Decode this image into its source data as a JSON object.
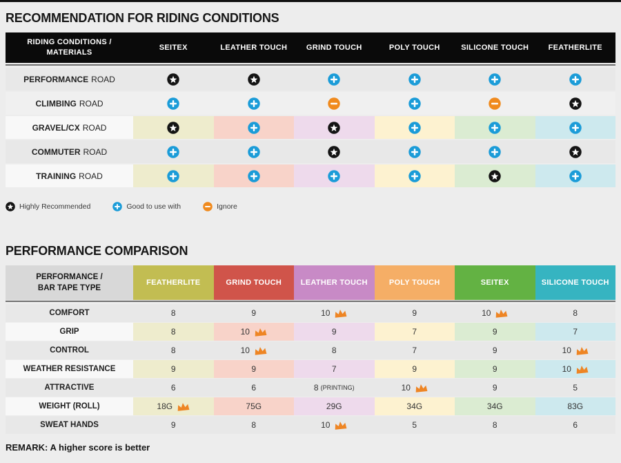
{
  "colors": {
    "page_bg": "#ededed",
    "top_strip": "#111111",
    "table1_header_bg": "#0a0a0a",
    "row_dark": "#e8e8e8",
    "row_mid": "#f0f0f0",
    "row_light": "#f8f8f8",
    "star": "#141414",
    "blue": "#1b9cd8",
    "orange": "#f08a1d",
    "crown": "#ee8524",
    "tints": [
      "#eeeccd",
      "#f8d3c9",
      "#eedaec",
      "#fdf2d0",
      "#dbecd2",
      "#cde9ee"
    ],
    "corner2_bg": "#d8d8d8"
  },
  "riding_table": {
    "title": "RECOMMENDATION FOR RIDING CONDITIONS",
    "corner_line1": "RIDING CONDITIONS /",
    "corner_line2": "MATERIALS",
    "columns": [
      "SEITEX",
      "LEATHER TOUCH",
      "GRIND TOUCH",
      "POLY TOUCH",
      "SILICONE TOUCH",
      "FEATHERLITE"
    ],
    "rows": [
      {
        "condition": "PERFORMANCE",
        "suffix": "ROAD",
        "tinted": false,
        "bg": "#e8e8e8",
        "cells": [
          "star",
          "star",
          "plus",
          "plus",
          "plus",
          "plus"
        ]
      },
      {
        "condition": "CLIMBING",
        "suffix": "ROAD",
        "tinted": false,
        "bg": "#f0f0f0",
        "cells": [
          "plus",
          "plus",
          "minus",
          "plus",
          "minus",
          "star"
        ]
      },
      {
        "condition": "GRAVEL/CX",
        "suffix": "ROAD",
        "tinted": true,
        "cells": [
          "star",
          "plus",
          "star",
          "plus",
          "plus",
          "plus"
        ]
      },
      {
        "condition": "COMMUTER",
        "suffix": "ROAD",
        "tinted": false,
        "bg": "#e8e8e8",
        "cells": [
          "plus",
          "plus",
          "star",
          "plus",
          "plus",
          "star"
        ]
      },
      {
        "condition": "TRAINING",
        "suffix": "ROAD",
        "tinted": true,
        "cells": [
          "plus",
          "plus",
          "plus",
          "plus",
          "star",
          "plus"
        ]
      }
    ],
    "legend": [
      {
        "icon": "star",
        "label": "Highly Recommended"
      },
      {
        "icon": "plus",
        "label": "Good to use with"
      },
      {
        "icon": "minus",
        "label": "Ignore"
      }
    ]
  },
  "perf_table": {
    "title": "PERFORMANCE COMPARISON",
    "corner_line1": "PERFORMANCE /",
    "corner_line2": "BAR TAPE TYPE",
    "columns": [
      {
        "label": "FEATHERLITE",
        "color": "#c2bd52"
      },
      {
        "label": "GRIND TOUCH",
        "color": "#d0544a"
      },
      {
        "label": "LEATHER TOUCH",
        "color": "#c88ac6"
      },
      {
        "label": "POLY TOUCH",
        "color": "#f5ae66"
      },
      {
        "label": "SEITEX",
        "color": "#63b243"
      },
      {
        "label": "SILICONE TOUCH",
        "color": "#36b4c1"
      }
    ],
    "rows": [
      {
        "label": "COMFORT",
        "tinted": false,
        "bg": "#e8e8e8",
        "cells": [
          {
            "v": "8"
          },
          {
            "v": "9"
          },
          {
            "v": "10",
            "crown": true
          },
          {
            "v": "9"
          },
          {
            "v": "10",
            "crown": true
          },
          {
            "v": "8"
          }
        ]
      },
      {
        "label": "GRIP",
        "tinted": true,
        "cells": [
          {
            "v": "8"
          },
          {
            "v": "10",
            "crown": true
          },
          {
            "v": "9"
          },
          {
            "v": "7"
          },
          {
            "v": "9"
          },
          {
            "v": "7"
          }
        ]
      },
      {
        "label": "CONTROL",
        "tinted": false,
        "bg": "#e8e8e8",
        "cells": [
          {
            "v": "8"
          },
          {
            "v": "10",
            "crown": true
          },
          {
            "v": "8"
          },
          {
            "v": "7"
          },
          {
            "v": "9"
          },
          {
            "v": "10",
            "crown": true
          }
        ]
      },
      {
        "label": "WEATHER RESISTANCE",
        "tinted": true,
        "cells": [
          {
            "v": "9"
          },
          {
            "v": "9"
          },
          {
            "v": "7"
          },
          {
            "v": "9"
          },
          {
            "v": "9"
          },
          {
            "v": "10",
            "crown": true
          }
        ]
      },
      {
        "label": "ATTRACTIVE",
        "tinted": false,
        "bg": "#e8e8e8",
        "cells": [
          {
            "v": "6"
          },
          {
            "v": "6"
          },
          {
            "v": "8",
            "note": "(PRINTING)"
          },
          {
            "v": "10",
            "crown": true
          },
          {
            "v": "9"
          },
          {
            "v": "5"
          }
        ]
      },
      {
        "label": "WEIGHT (ROLL)",
        "tinted": true,
        "cells": [
          {
            "v": "18G",
            "crown": true
          },
          {
            "v": "75G"
          },
          {
            "v": "29G"
          },
          {
            "v": "34G"
          },
          {
            "v": "34G"
          },
          {
            "v": "83G"
          }
        ]
      },
      {
        "label": "SWEAT HANDS",
        "tinted": false,
        "bg": "#e8e8e8",
        "cells": [
          {
            "v": "9"
          },
          {
            "v": "8"
          },
          {
            "v": "10",
            "crown": true
          },
          {
            "v": "5"
          },
          {
            "v": "8"
          },
          {
            "v": "6"
          }
        ]
      }
    ],
    "remark": "REMARK: A higher score is better"
  },
  "chart_data": [
    {
      "type": "table",
      "title": "RECOMMENDATION FOR RIDING CONDITIONS",
      "corner_header": "RIDING CONDITIONS / MATERIALS",
      "columns": [
        "SEITEX",
        "LEATHER TOUCH",
        "GRIND TOUCH",
        "POLY TOUCH",
        "SILICONE TOUCH",
        "FEATHERLITE"
      ],
      "rows": [
        "PERFORMANCE ROAD",
        "CLIMBING ROAD",
        "GRAVEL/CX ROAD",
        "COMMUTER ROAD",
        "TRAINING ROAD"
      ],
      "values": [
        [
          "star",
          "star",
          "plus",
          "plus",
          "plus",
          "plus"
        ],
        [
          "plus",
          "plus",
          "minus",
          "plus",
          "minus",
          "star"
        ],
        [
          "star",
          "plus",
          "star",
          "plus",
          "plus",
          "plus"
        ],
        [
          "plus",
          "plus",
          "star",
          "plus",
          "plus",
          "star"
        ],
        [
          "plus",
          "plus",
          "plus",
          "plus",
          "star",
          "plus"
        ]
      ],
      "icon_legend": {
        "star": "Highly Recommended",
        "plus": "Good to use with",
        "minus": "Ignore"
      },
      "legend_position": "below-table"
    },
    {
      "type": "table",
      "title": "PERFORMANCE COMPARISON",
      "corner_header": "PERFORMANCE / BAR TAPE TYPE",
      "columns": [
        "FEATHERLITE",
        "GRIND TOUCH",
        "LEATHER TOUCH",
        "POLY TOUCH",
        "SEITEX",
        "SILICONE TOUCH"
      ],
      "rows": [
        "COMFORT",
        "GRIP",
        "CONTROL",
        "WEATHER RESISTANCE",
        "ATTRACTIVE",
        "WEIGHT (ROLL)",
        "SWEAT HANDS"
      ],
      "values": [
        [
          "8",
          "9",
          "10",
          "9",
          "10",
          "8"
        ],
        [
          "8",
          "10",
          "9",
          "7",
          "9",
          "7"
        ],
        [
          "8",
          "10",
          "8",
          "7",
          "9",
          "10"
        ],
        [
          "9",
          "9",
          "7",
          "9",
          "9",
          "10"
        ],
        [
          "6",
          "6",
          "8 (PRINTING)",
          "10",
          "9",
          "5"
        ],
        [
          "18G",
          "75G",
          "29G",
          "34G",
          "34G",
          "83G"
        ],
        [
          "9",
          "8",
          "10",
          "5",
          "8",
          "6"
        ]
      ],
      "crown_marked_columns_per_row": [
        [
          2,
          4
        ],
        [
          1
        ],
        [
          1,
          5
        ],
        [
          5
        ],
        [
          3
        ],
        [
          0
        ],
        [
          2
        ]
      ],
      "crown_meaning": "best in row",
      "annotation": "REMARK: A higher score is better"
    }
  ]
}
